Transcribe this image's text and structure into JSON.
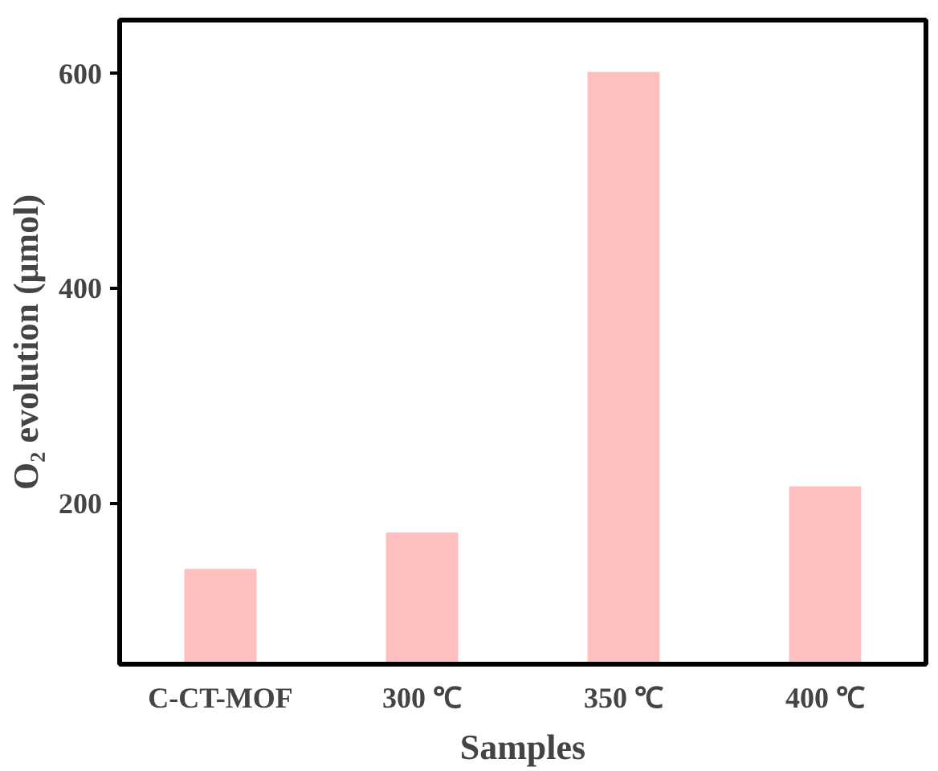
{
  "chart_data": {
    "type": "bar",
    "xlabel": "Samples",
    "ylabel": "O₂ evolution (μmol)",
    "categories": [
      "C-CT-MOF",
      "300 ℃",
      "350 ℃",
      "400 ℃"
    ],
    "values": [
      138,
      172,
      601,
      215
    ],
    "color": "#ffbfbf",
    "ylim": [
      50,
      650
    ],
    "yticks": [
      200,
      400,
      600
    ],
    "grid": false
  }
}
